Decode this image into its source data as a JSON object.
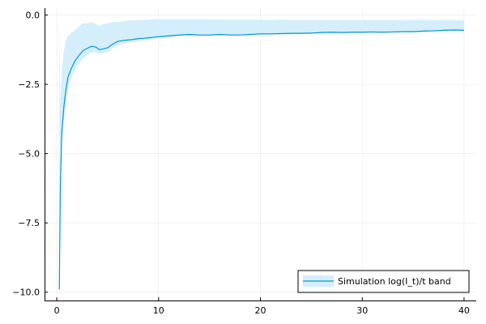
{
  "chart_data": {
    "type": "line",
    "title": "",
    "xlabel": "",
    "ylabel": "",
    "xlim": [
      -1.2,
      41.2
    ],
    "ylim": [
      -10.3,
      0.25
    ],
    "grid": true,
    "legend_position": "bottom-right",
    "x_ticks": [
      0,
      10,
      20,
      30,
      40
    ],
    "x_tick_labels": [
      "0",
      "10",
      "20",
      "30",
      "40"
    ],
    "y_ticks": [
      0,
      -2.5,
      -5,
      -7.5,
      -10
    ],
    "y_tick_labels": [
      "0.0",
      "−2.5",
      "−5.0",
      "−7.5",
      "−10.0"
    ],
    "series": [
      {
        "name": "Simulation log(I_t)/t band",
        "color": "#009AD1",
        "fill_color": "#D4EEFB",
        "x": [
          0.25,
          0.35,
          0.5,
          0.7,
          0.9,
          1.1,
          1.4,
          1.8,
          2.2,
          2.6,
          3.0,
          3.4,
          3.8,
          4.2,
          4.6,
          5.0,
          5.5,
          6.0,
          6.5,
          7.0,
          7.5,
          8.0,
          8.5,
          9.0,
          9.5,
          10,
          11,
          12,
          13,
          14,
          15,
          16,
          17,
          18,
          19,
          20,
          21,
          22,
          23,
          24,
          25,
          26,
          27,
          28,
          29,
          30,
          31,
          32,
          33,
          34,
          35,
          36,
          37,
          38,
          39,
          40
        ],
        "y": [
          -9.9,
          -6.2,
          -4.2,
          -3.3,
          -2.7,
          -2.25,
          -1.95,
          -1.65,
          -1.45,
          -1.28,
          -1.2,
          -1.13,
          -1.15,
          -1.25,
          -1.22,
          -1.18,
          -1.05,
          -0.95,
          -0.92,
          -0.9,
          -0.88,
          -0.85,
          -0.84,
          -0.82,
          -0.8,
          -0.78,
          -0.75,
          -0.72,
          -0.7,
          -0.72,
          -0.72,
          -0.7,
          -0.72,
          -0.72,
          -0.7,
          -0.68,
          -0.68,
          -0.67,
          -0.66,
          -0.66,
          -0.65,
          -0.63,
          -0.62,
          -0.63,
          -0.62,
          -0.62,
          -0.61,
          -0.62,
          -0.61,
          -0.6,
          -0.6,
          -0.58,
          -0.57,
          -0.55,
          -0.54,
          -0.55
        ],
        "upper": [
          -0.25,
          -3.3,
          -2.0,
          -1.3,
          -0.9,
          -0.75,
          -0.65,
          -0.55,
          -0.4,
          -0.3,
          -0.3,
          -0.25,
          -0.32,
          -0.4,
          -0.32,
          -0.3,
          -0.25,
          -0.25,
          -0.22,
          -0.2,
          -0.2,
          -0.18,
          -0.18,
          -0.16,
          -0.15,
          -0.15,
          -0.15,
          -0.15,
          -0.15,
          -0.15,
          -0.16,
          -0.16,
          -0.17,
          -0.17,
          -0.17,
          -0.17,
          -0.18,
          -0.17,
          -0.18,
          -0.18,
          -0.18,
          -0.18,
          -0.18,
          -0.18,
          -0.18,
          -0.18,
          -0.18,
          -0.18,
          -0.18,
          -0.18,
          -0.18,
          -0.18,
          -0.18,
          -0.18,
          -0.18,
          -0.2
        ],
        "lower": [
          -10.0,
          -6.5,
          -4.6,
          -3.8,
          -3.2,
          -2.6,
          -2.3,
          -1.95,
          -1.75,
          -1.55,
          -1.45,
          -1.35,
          -1.35,
          -1.4,
          -1.38,
          -1.32,
          -1.2,
          -1.1,
          -1.05,
          -1.0,
          -0.98,
          -0.95,
          -0.92,
          -0.9,
          -0.88,
          -0.85,
          -0.82,
          -0.78,
          -0.76,
          -0.76,
          -0.75,
          -0.74,
          -0.74,
          -0.74,
          -0.73,
          -0.72,
          -0.71,
          -0.7,
          -0.7,
          -0.69,
          -0.68,
          -0.67,
          -0.66,
          -0.66,
          -0.65,
          -0.65,
          -0.64,
          -0.64,
          -0.63,
          -0.62,
          -0.62,
          -0.61,
          -0.6,
          -0.58,
          -0.57,
          -0.57
        ]
      }
    ]
  }
}
